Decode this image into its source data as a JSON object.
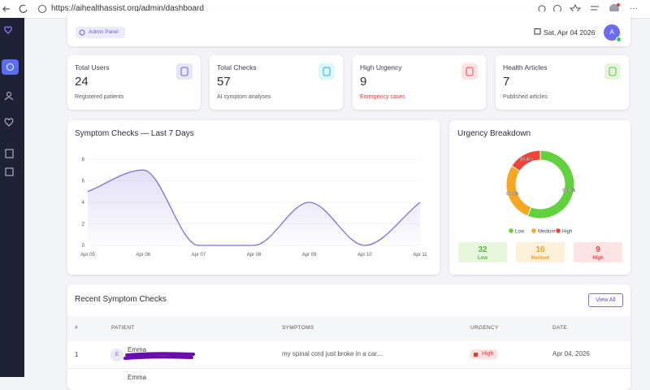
{
  "browser": {
    "url": "https://aihealthassist.org/admin/dashboard"
  },
  "header": {
    "badge": "Admin Panel",
    "date": "Sat, Apr 04 2026",
    "avatar": "A"
  },
  "stats": [
    {
      "label": "Total Users",
      "value": 24,
      "note": "Registered patients"
    },
    {
      "label": "Total Checks",
      "value": 57,
      "note": "AI symptom analyses"
    },
    {
      "label": "High Urgency",
      "value": 9,
      "note": "Emergency cases"
    },
    {
      "label": "Health Articles",
      "value": 7,
      "note": "Published articles"
    }
  ],
  "chart_data": [
    {
      "type": "line",
      "title": "Symptom Checks — Last 7 Days",
      "categories": [
        "Apr 05",
        "Apr 06",
        "Apr 07",
        "Apr 08",
        "Apr 09",
        "Apr 10",
        "Apr 11"
      ],
      "series": [
        {
          "color": "#7c70d8",
          "values": [
            5,
            7,
            0,
            0,
            4,
            0,
            4
          ]
        }
      ],
      "ylim": [
        0,
        8
      ],
      "yticks": [
        0,
        2,
        4,
        6,
        8
      ],
      "grid": true,
      "smooth": true
    },
    {
      "type": "pie",
      "title": "Urgency Breakdown",
      "donut": true,
      "categories": [
        "Low",
        "Medium",
        "High"
      ],
      "values": [
        56.1,
        28.1,
        15.8
      ],
      "value_labels": [
        "56.1%",
        "28.1%",
        "15.8%"
      ],
      "colors": [
        "#62d13e",
        "#f5a623",
        "#f04438"
      ],
      "counts": [
        32,
        16,
        9
      ],
      "legend": "bottom"
    }
  ],
  "recent": {
    "title": "Recent Symptom Checks",
    "button": "View All",
    "columns": [
      "#",
      "PATIENT",
      "SYMPTOMS",
      "URGENCY",
      "DATE"
    ],
    "rows": [
      {
        "num": "1",
        "avatar": "E",
        "name": "Emma",
        "symptoms": "my spinal cord just broke in a car...",
        "urgency": "High",
        "date": "Apr 04, 2026"
      },
      {
        "name": "Emma"
      }
    ]
  }
}
